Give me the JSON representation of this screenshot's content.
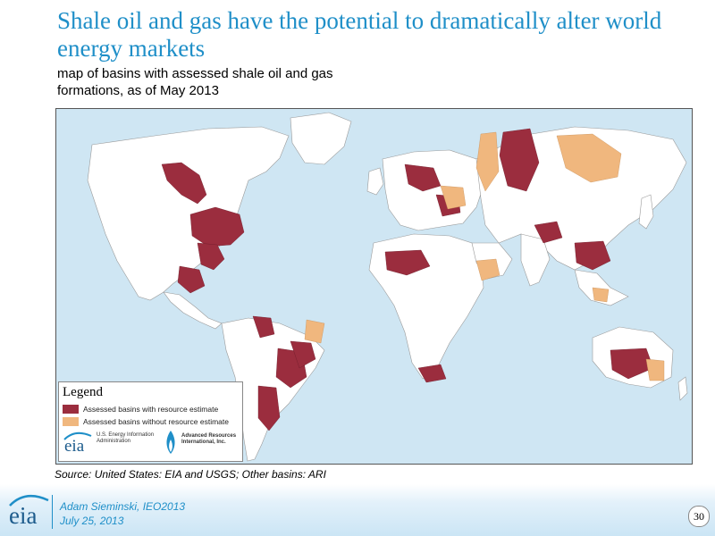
{
  "slide": {
    "title": "Shale oil and gas have the potential to dramatically alter world energy markets",
    "subtitle": "map of basins with assessed shale oil and gas formations, as of May 2013",
    "source": "Source:  United States:  EIA and USGS; Other basins: ARI",
    "page_number": "30"
  },
  "legend": {
    "title": "Legend",
    "items": [
      {
        "label": "Assessed basins with resource estimate",
        "color": "#9b2d3e"
      },
      {
        "label": "Assessed basins without resource estimate",
        "color": "#f0b77e"
      }
    ],
    "eia_logo_text": "eia",
    "eia_org": "U.S. Energy Information Administration",
    "ari_org": "Advanced Resources International, Inc."
  },
  "footer": {
    "logo_text": "eia",
    "author": "Adam Sieminski, IEO2013",
    "date": "July 25, 2013"
  },
  "map": {
    "ocean_color": "#cfe6f3",
    "land_color": "#ffffff",
    "border_color": "#9a9a9a"
  }
}
